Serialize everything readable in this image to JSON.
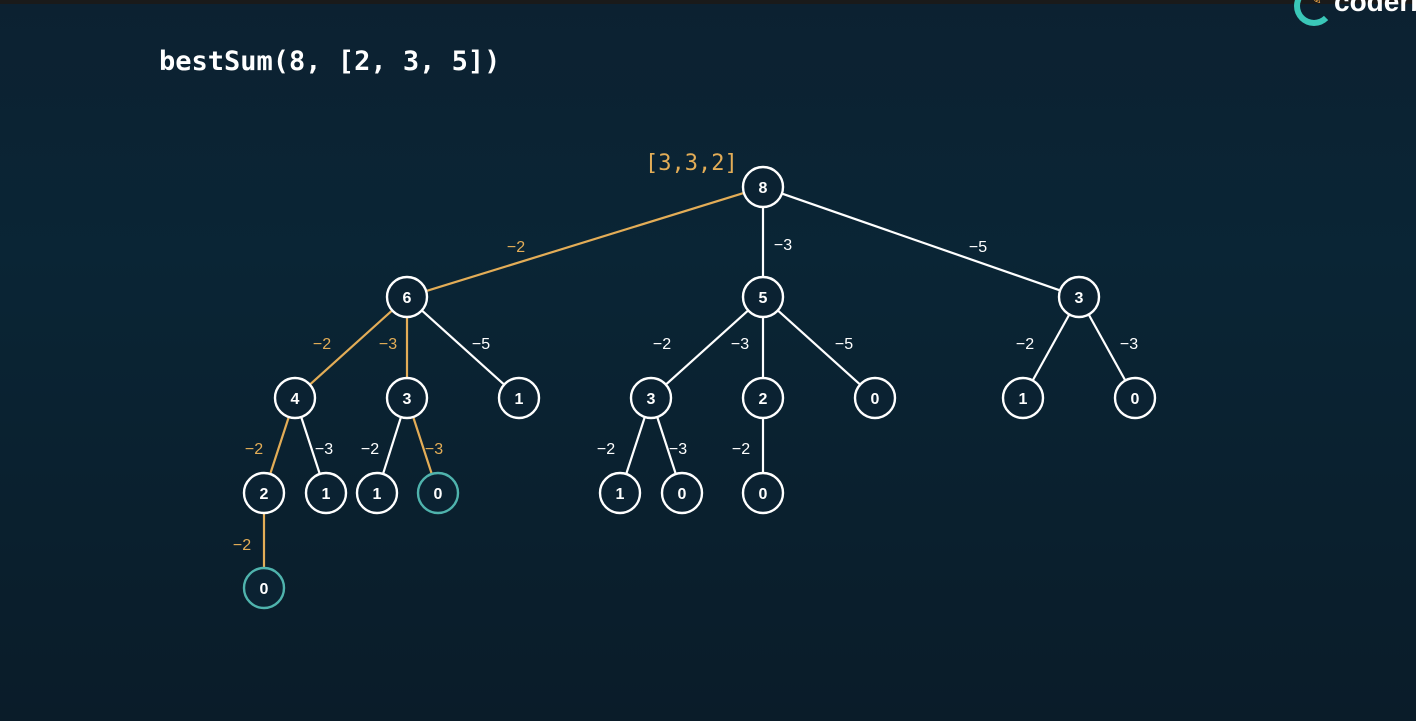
{
  "title": "bestSum(8, [2, 3, 5])",
  "logo": {
    "text": "coderb"
  },
  "colors": {
    "default": "#ffffff",
    "highlight": "#e3ad57",
    "base_case": "#4fb3ad",
    "background": "#0b2232"
  },
  "result_label": "[3,3,2]",
  "nodes": [
    {
      "id": "n8",
      "value": "8",
      "state": "default"
    },
    {
      "id": "n6",
      "value": "6",
      "state": "default"
    },
    {
      "id": "n5",
      "value": "5",
      "state": "default"
    },
    {
      "id": "n3r",
      "value": "3",
      "state": "default"
    },
    {
      "id": "n4",
      "value": "4",
      "state": "default"
    },
    {
      "id": "n3a",
      "value": "3",
      "state": "default"
    },
    {
      "id": "n1a",
      "value": "1",
      "state": "default"
    },
    {
      "id": "n3b",
      "value": "3",
      "state": "default"
    },
    {
      "id": "n2b",
      "value": "2",
      "state": "default"
    },
    {
      "id": "n0a",
      "value": "0",
      "state": "default"
    },
    {
      "id": "n1r",
      "value": "1",
      "state": "default"
    },
    {
      "id": "n0r",
      "value": "0",
      "state": "default"
    },
    {
      "id": "n2a",
      "value": "2",
      "state": "default"
    },
    {
      "id": "n1b",
      "value": "1",
      "state": "default"
    },
    {
      "id": "n1c",
      "value": "1",
      "state": "default"
    },
    {
      "id": "n0b",
      "value": "0",
      "state": "base"
    },
    {
      "id": "n1d",
      "value": "1",
      "state": "default"
    },
    {
      "id": "n0c",
      "value": "0",
      "state": "default"
    },
    {
      "id": "n0d",
      "value": "0",
      "state": "default"
    },
    {
      "id": "n0e",
      "value": "0",
      "state": "base"
    }
  ],
  "edges": [
    {
      "from": "n8",
      "to": "n6",
      "label": "-2",
      "highlight": true
    },
    {
      "from": "n8",
      "to": "n5",
      "label": "-3",
      "highlight": false
    },
    {
      "from": "n8",
      "to": "n3r",
      "label": "-5",
      "highlight": false
    },
    {
      "from": "n6",
      "to": "n4",
      "label": "-2",
      "highlight": true
    },
    {
      "from": "n6",
      "to": "n3a",
      "label": "-3",
      "highlight": true
    },
    {
      "from": "n6",
      "to": "n1a",
      "label": "-5",
      "highlight": false
    },
    {
      "from": "n5",
      "to": "n3b",
      "label": "-2",
      "highlight": false
    },
    {
      "from": "n5",
      "to": "n2b",
      "label": "-3",
      "highlight": false
    },
    {
      "from": "n5",
      "to": "n0a",
      "label": "-5",
      "highlight": false
    },
    {
      "from": "n3r",
      "to": "n1r",
      "label": "-2",
      "highlight": false
    },
    {
      "from": "n3r",
      "to": "n0r",
      "label": "-3",
      "highlight": false
    },
    {
      "from": "n4",
      "to": "n2a",
      "label": "-2",
      "highlight": true
    },
    {
      "from": "n4",
      "to": "n1b",
      "label": "-3",
      "highlight": false
    },
    {
      "from": "n3a",
      "to": "n1c",
      "label": "-2",
      "highlight": false
    },
    {
      "from": "n3a",
      "to": "n0b",
      "label": "-3",
      "highlight": true
    },
    {
      "from": "n3b",
      "to": "n1d",
      "label": "-2",
      "highlight": false
    },
    {
      "from": "n3b",
      "to": "n0c",
      "label": "-3",
      "highlight": false
    },
    {
      "from": "n2b",
      "to": "n0d",
      "label": "-2",
      "highlight": false
    },
    {
      "from": "n2a",
      "to": "n0e",
      "label": "-2",
      "highlight": true
    }
  ]
}
